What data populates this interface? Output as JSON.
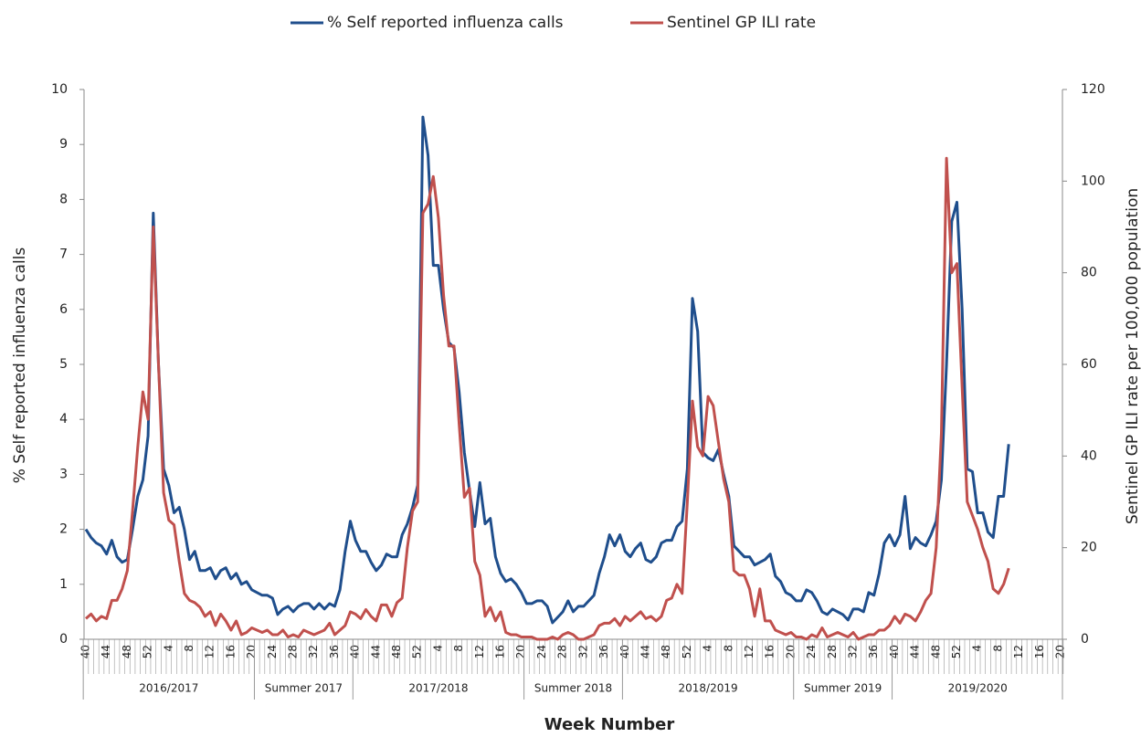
{
  "chart_data": {
    "type": "line",
    "x_label": "Week Number",
    "y_label": "% Self reported influenza calls",
    "y2_label": "Sentinel GP ILI rate per 100,000 population",
    "categories": [
      40,
      null,
      null,
      null,
      44,
      null,
      null,
      null,
      48,
      null,
      null,
      null,
      52,
      null,
      null,
      null,
      4,
      null,
      null,
      null,
      8,
      null,
      null,
      null,
      12,
      null,
      null,
      null,
      16,
      null,
      null,
      null,
      20,
      null,
      null,
      null,
      24,
      null,
      null,
      null,
      28,
      null,
      null,
      null,
      32,
      null,
      null,
      null,
      36,
      null,
      null,
      null,
      40,
      null,
      null,
      null,
      44,
      null,
      null,
      null,
      48,
      null,
      null,
      null,
      52,
      null,
      null,
      null,
      4,
      null,
      null,
      null,
      8,
      null,
      null,
      null,
      12,
      null,
      null,
      null,
      16,
      null,
      null,
      null,
      20,
      null,
      null,
      null,
      24,
      null,
      null,
      null,
      28,
      null,
      null,
      null,
      32,
      null,
      null,
      null,
      36,
      null,
      null,
      null,
      40,
      null,
      null,
      null,
      44,
      null,
      null,
      null,
      48,
      null,
      null,
      null,
      52,
      null,
      null,
      null,
      4,
      null,
      null,
      null,
      8,
      null,
      null,
      null,
      12,
      null,
      null,
      null,
      16,
      null,
      null,
      null,
      20,
      null,
      null,
      null,
      24,
      null,
      null,
      null,
      28,
      null,
      null,
      null,
      32,
      null,
      null,
      null,
      36,
      null,
      null,
      null,
      40,
      null,
      null,
      null,
      44,
      null,
      null,
      null,
      48,
      null,
      null,
      null,
      52,
      null,
      null,
      null,
      4,
      null,
      null,
      null,
      8,
      null,
      null,
      null,
      12,
      null,
      null,
      null,
      16,
      null,
      null,
      null,
      20
    ],
    "groups": [
      "2016/2017",
      "Summer 2017",
      "2017/2018",
      "Summer 2018",
      "2018/2019",
      "Summer 2019",
      "2019/2020"
    ],
    "ylim": [
      0,
      10
    ],
    "yticks": [
      0,
      1,
      2,
      3,
      4,
      5,
      6,
      7,
      8,
      9,
      10
    ],
    "y2lim": [
      0,
      120
    ],
    "y2ticks": [
      0,
      20,
      40,
      60,
      80,
      100,
      120
    ],
    "series": [
      {
        "name": "% Self reported influenza calls",
        "color": "#1f4e8c",
        "values": [
          2.0,
          1.85,
          1.75,
          1.7,
          1.55,
          1.8,
          1.5,
          1.4,
          1.45,
          2.0,
          2.6,
          2.9,
          3.7,
          7.75,
          5.0,
          3.1,
          2.8,
          2.3,
          2.4,
          2.0,
          1.45,
          1.6,
          1.25,
          1.25,
          1.3,
          1.1,
          1.25,
          1.3,
          1.1,
          1.2,
          1.0,
          1.05,
          0.9,
          0.85,
          0.8,
          0.8,
          0.75,
          0.45,
          0.55,
          0.6,
          0.5,
          0.6,
          0.65,
          0.65,
          0.55,
          0.65,
          0.55,
          0.65,
          0.6,
          0.9,
          1.6,
          2.15,
          1.8,
          1.6,
          1.6,
          1.4,
          1.25,
          1.35,
          1.55,
          1.5,
          1.5,
          1.9,
          2.1,
          2.4,
          2.8,
          9.5,
          8.8,
          6.8,
          6.8,
          6.0,
          5.4,
          5.3,
          4.5,
          3.4,
          2.7,
          2.05,
          2.85,
          2.1,
          2.2,
          1.5,
          1.2,
          1.05,
          1.1,
          1.0,
          0.85,
          0.65,
          0.65,
          0.7,
          0.7,
          0.6,
          0.3,
          0.4,
          0.5,
          0.7,
          0.5,
          0.6,
          0.6,
          0.7,
          0.8,
          1.2,
          1.5,
          1.9,
          1.7,
          1.9,
          1.6,
          1.5,
          1.65,
          1.75,
          1.45,
          1.4,
          1.5,
          1.75,
          1.8,
          1.8,
          2.05,
          2.15,
          3.1,
          6.2,
          5.6,
          3.4,
          3.3,
          3.25,
          3.45,
          3.0,
          2.6,
          1.7,
          1.6,
          1.5,
          1.5,
          1.35,
          1.4,
          1.45,
          1.55,
          1.15,
          1.05,
          0.85,
          0.8,
          0.7,
          0.7,
          0.9,
          0.85,
          0.7,
          0.5,
          0.45,
          0.55,
          0.5,
          0.45,
          0.35,
          0.55,
          0.55,
          0.5,
          0.85,
          0.8,
          1.2,
          1.75,
          1.9,
          1.7,
          1.9,
          2.6,
          1.65,
          1.85,
          1.75,
          1.7,
          1.9,
          2.15,
          2.9,
          5.0,
          7.6,
          7.95,
          6.0,
          3.1,
          3.05,
          2.3,
          2.3,
          1.95,
          1.85,
          2.6,
          2.6,
          3.55,
          null,
          null,
          null,
          null,
          null,
          null,
          null,
          null,
          null,
          null
        ]
      },
      {
        "name": "Sentinel GP ILI rate",
        "color": "#c0504d",
        "axis": "y2",
        "values": [
          4.5,
          5.5,
          4,
          5,
          4.5,
          8.5,
          8.5,
          11,
          15,
          28,
          42,
          54,
          48,
          90,
          60,
          32,
          26,
          25,
          17,
          10,
          8.5,
          8,
          7,
          5,
          6,
          3,
          5.5,
          4,
          2,
          4,
          1,
          1.5,
          2.5,
          2,
          1.5,
          2,
          1,
          1,
          2,
          0.5,
          1,
          0.5,
          2,
          1.5,
          1,
          1.5,
          2,
          3.5,
          1,
          2,
          3,
          6,
          5.5,
          4.5,
          6.5,
          5,
          4,
          7.5,
          7.5,
          5,
          8,
          9,
          20,
          28,
          30,
          93,
          95,
          101,
          92,
          75,
          64,
          64,
          47,
          31,
          33,
          17,
          14,
          5,
          7,
          4,
          6,
          1.5,
          1,
          1,
          0.5,
          0.5,
          0.5,
          0,
          0,
          0,
          0.5,
          0,
          1,
          1.5,
          1,
          0,
          0,
          0.5,
          1,
          3,
          3.5,
          3.5,
          4.5,
          3,
          5,
          4,
          5,
          6,
          4.5,
          5,
          4,
          5,
          8.5,
          9,
          12,
          10,
          30,
          52,
          42,
          40,
          53,
          51,
          43,
          35,
          30,
          15,
          14,
          14,
          11,
          5,
          11,
          4,
          4,
          2,
          1.5,
          1,
          1.5,
          0.5,
          0.5,
          0,
          1,
          0.5,
          2.5,
          0.5,
          1,
          1.5,
          1,
          0.5,
          1.5,
          0,
          0.5,
          1,
          1,
          2,
          2,
          3,
          5,
          3.5,
          5.5,
          5,
          4,
          6,
          8.5,
          10,
          20,
          45,
          105,
          80,
          82,
          55,
          30,
          27,
          24,
          20,
          17,
          11,
          10,
          12,
          15.5,
          null,
          null,
          null,
          null,
          null,
          null,
          null,
          null,
          null,
          null
        ]
      }
    ]
  }
}
